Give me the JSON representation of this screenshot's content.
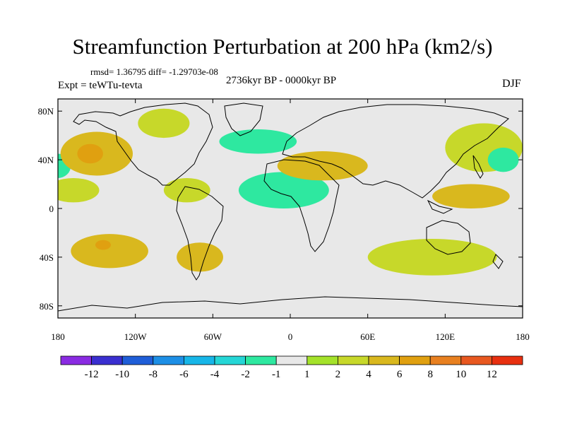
{
  "title": "Streamfunction Perturbation at 200 hPa (km2/s)",
  "stats_line": "rmsd= 1.36795 diff= -1.29703e-08",
  "experiment_line": "Expt = teWTu-tevta",
  "period_line": "2736kyr BP - 0000kyr BP",
  "season": "DJF",
  "map": {
    "projection": "cylindrical-equidistant",
    "lon_range": [
      -180,
      180
    ],
    "lat_range": [
      -90,
      90
    ],
    "lat_ticks": [
      {
        "value": 80,
        "label": "80N"
      },
      {
        "value": 40,
        "label": "40N"
      },
      {
        "value": 0,
        "label": "0"
      },
      {
        "value": -40,
        "label": "40S"
      },
      {
        "value": -80,
        "label": "80S"
      }
    ],
    "lon_ticks": [
      {
        "value": -180,
        "label": "180"
      },
      {
        "value": -120,
        "label": "120W"
      },
      {
        "value": -60,
        "label": "60W"
      },
      {
        "value": 0,
        "label": "0"
      },
      {
        "value": 60,
        "label": "60E"
      },
      {
        "value": 120,
        "label": "120E"
      },
      {
        "value": 180,
        "label": "180"
      }
    ]
  },
  "colorbar": {
    "colors": [
      "#8a2be2",
      "#3a2fd0",
      "#1f5ed8",
      "#1d8fe6",
      "#17b6e8",
      "#25d6d6",
      "#2ee8a0",
      "#e8e8e8",
      "#a4e22a",
      "#c7d82a",
      "#d9b81e",
      "#e0a010",
      "#e88020",
      "#e85820",
      "#e83010"
    ],
    "labels": [
      "-12",
      "-10",
      "-8",
      "-6",
      "-4",
      "-2",
      "-1",
      "1",
      "2",
      "4",
      "6",
      "8",
      "10",
      "12"
    ]
  },
  "chart_data": {
    "type": "heatmap",
    "variable": "Streamfunction Perturbation at 200 hPa",
    "units": "km2/s",
    "levels": [
      -12,
      -10,
      -8,
      -6,
      -4,
      -2,
      -1,
      1,
      2,
      4,
      6,
      8,
      10,
      12
    ],
    "regions": [
      {
        "name": "north-pacific-east",
        "lon": -150,
        "lat": 45,
        "value": 4,
        "rx": 28,
        "ry": 18
      },
      {
        "name": "north-pacific-east-core",
        "lon": -155,
        "lat": 45,
        "value": 6,
        "rx": 10,
        "ry": 8
      },
      {
        "name": "far-east-pacific-blue",
        "lon": -180,
        "lat": 35,
        "value": -2,
        "rx": 10,
        "ry": 10
      },
      {
        "name": "subtropical-pacific-north",
        "lon": -168,
        "lat": 15,
        "value": 2,
        "rx": 20,
        "ry": 10
      },
      {
        "name": "north-america-atlantic-band",
        "lon": -40,
        "lat": 48,
        "value": -1,
        "rx": 55,
        "ry": 20
      },
      {
        "name": "north-atlantic-core",
        "lon": -25,
        "lat": 55,
        "value": -2,
        "rx": 30,
        "ry": 10
      },
      {
        "name": "greenland-arctic",
        "lon": -30,
        "lat": 75,
        "value": -1,
        "rx": 60,
        "ry": 12
      },
      {
        "name": "canada-yellow",
        "lon": -98,
        "lat": 70,
        "value": 2,
        "rx": 20,
        "ry": 12
      },
      {
        "name": "europe-mediterranean",
        "lon": 25,
        "lat": 35,
        "value": 4,
        "rx": 35,
        "ry": 12
      },
      {
        "name": "siberia-arctic",
        "lon": 40,
        "lat": 75,
        "value": -1,
        "rx": 35,
        "ry": 10
      },
      {
        "name": "caribbean",
        "lon": -80,
        "lat": 15,
        "value": 2,
        "rx": 18,
        "ry": 10
      },
      {
        "name": "africa-equatorial",
        "lon": -5,
        "lat": 15,
        "value": -2,
        "rx": 35,
        "ry": 15
      },
      {
        "name": "africa-band",
        "lon": 20,
        "lat": -10,
        "value": -1,
        "rx": 30,
        "ry": 20
      },
      {
        "name": "east-asia-north",
        "lon": 150,
        "lat": 50,
        "value": 2,
        "rx": 30,
        "ry": 20
      },
      {
        "name": "east-asia-core",
        "lon": 165,
        "lat": 40,
        "value": -2,
        "rx": 12,
        "ry": 10
      },
      {
        "name": "west-pacific-tropics",
        "lon": 140,
        "lat": 10,
        "value": 4,
        "rx": 30,
        "ry": 10
      },
      {
        "name": "south-pacific",
        "lon": -140,
        "lat": -35,
        "value": 4,
        "rx": 30,
        "ry": 14
      },
      {
        "name": "south-pacific-core",
        "lon": -145,
        "lat": -30,
        "value": 6,
        "rx": 6,
        "ry": 4
      },
      {
        "name": "south-america-south",
        "lon": -70,
        "lat": -40,
        "value": 4,
        "rx": 18,
        "ry": 12
      },
      {
        "name": "south-atlantic-band",
        "lon": 0,
        "lat": -45,
        "value": -1,
        "rx": 45,
        "ry": 14
      },
      {
        "name": "southern-ocean-east",
        "lon": 110,
        "lat": -40,
        "value": 2,
        "rx": 50,
        "ry": 15
      }
    ]
  }
}
